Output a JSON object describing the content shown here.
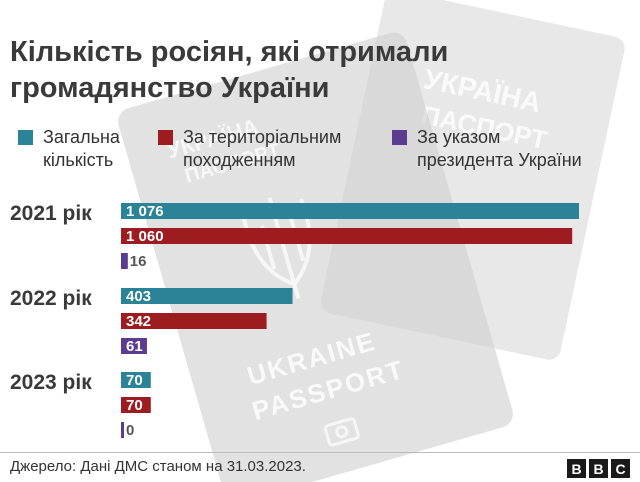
{
  "title": "Кількість росіян, які отримали громадянство України",
  "legend": [
    {
      "label": "Загальна\nкількість",
      "color": "#2a8397"
    },
    {
      "label": "За територіальним\nпоходженням",
      "color": "#9d1c1f"
    },
    {
      "label": "За указом\nпрезидента України",
      "color": "#5b3c8e"
    }
  ],
  "colors": {
    "total": "#2a8397",
    "territorial": "#9d1c1f",
    "decree": "#5b3c8e"
  },
  "chart_data": {
    "type": "bar",
    "orientation": "horizontal",
    "title": "Кількість росіян, які отримали громадянство України",
    "categories": [
      "2021 рік",
      "2022 рік",
      "2023 рік"
    ],
    "series": [
      {
        "name": "Загальна кількість",
        "values": [
          1076,
          403,
          70
        ],
        "labels": [
          "1 076",
          "403",
          "70"
        ]
      },
      {
        "name": "За територіальним походженням",
        "values": [
          1060,
          342,
          70
        ],
        "labels": [
          "1 060",
          "342",
          "70"
        ]
      },
      {
        "name": "За указом президента України",
        "values": [
          16,
          61,
          0
        ],
        "labels": [
          "16",
          "61",
          "0"
        ]
      }
    ],
    "xlim": [
      0,
      1076
    ],
    "grid": false,
    "legend_position": "top"
  },
  "background": {
    "passport_texts": [
      "UKRAINE",
      "PASSPORT",
      "УКРАЇНА",
      "ПАСПОРТ"
    ]
  },
  "footer": {
    "source": "Джерело: Дані ДМС станом на 31.03.2023.",
    "logo": [
      "B",
      "B",
      "C"
    ]
  }
}
